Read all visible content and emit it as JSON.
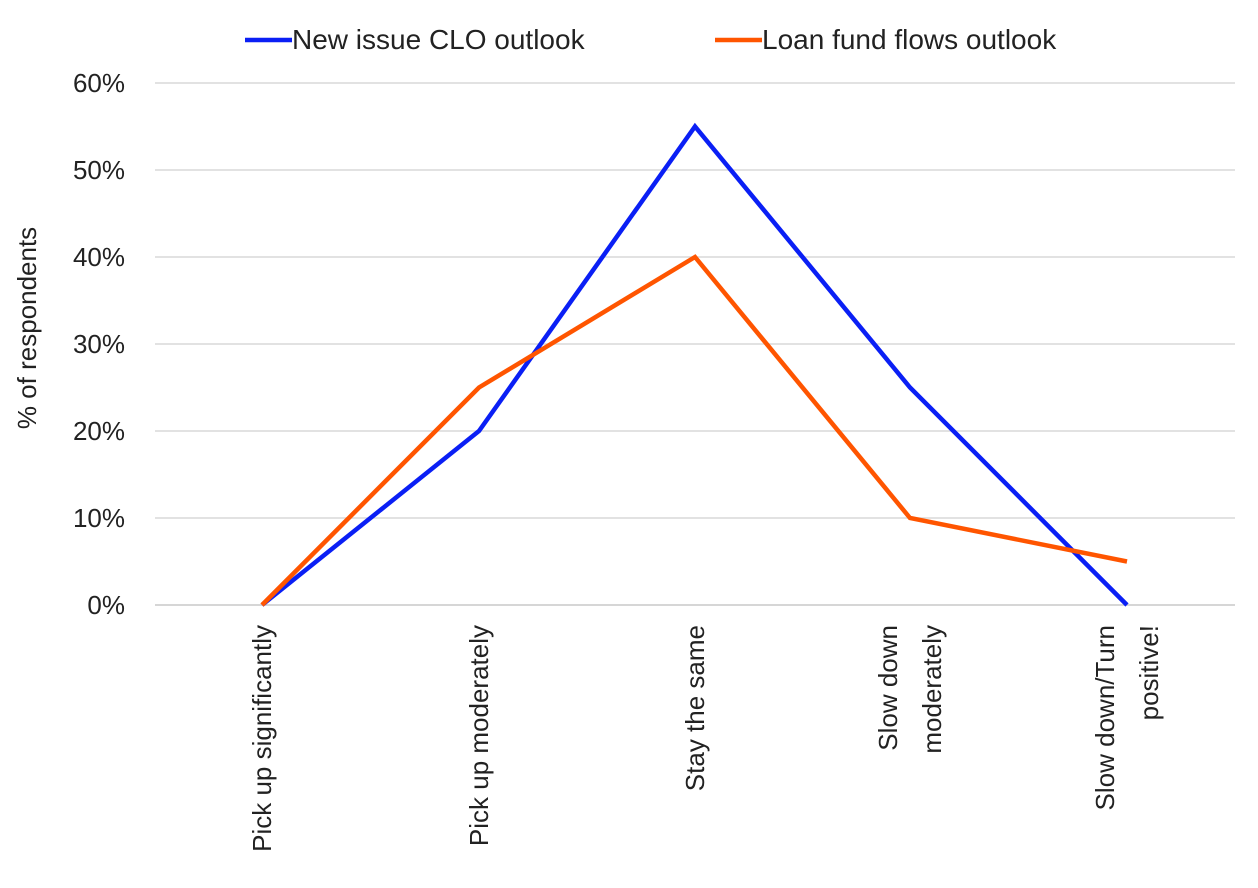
{
  "chart_data": {
    "type": "line",
    "categories": [
      [
        "Pick up significantly"
      ],
      [
        "Pick up moderately"
      ],
      [
        "Stay the same"
      ],
      [
        "Slow down",
        "moderately"
      ],
      [
        "Slow down/Turn",
        "positive!"
      ]
    ],
    "series": [
      {
        "name": "New issue CLO outlook",
        "color": "#0a1ff5",
        "values": [
          0,
          20,
          55,
          25,
          0
        ]
      },
      {
        "name": "Loan fund flows outlook",
        "color": "#ff5500",
        "values": [
          0,
          25,
          40,
          10,
          5
        ]
      }
    ],
    "ylabel": "% of respondents",
    "xlabel": "",
    "ylim": [
      0,
      60
    ],
    "yticks": [
      0,
      10,
      20,
      30,
      40,
      50,
      60
    ],
    "ytick_labels": [
      "0%",
      "10%",
      "20%",
      "30%",
      "40%",
      "50%",
      "60%"
    ],
    "grid": true,
    "legend_position": "top"
  }
}
